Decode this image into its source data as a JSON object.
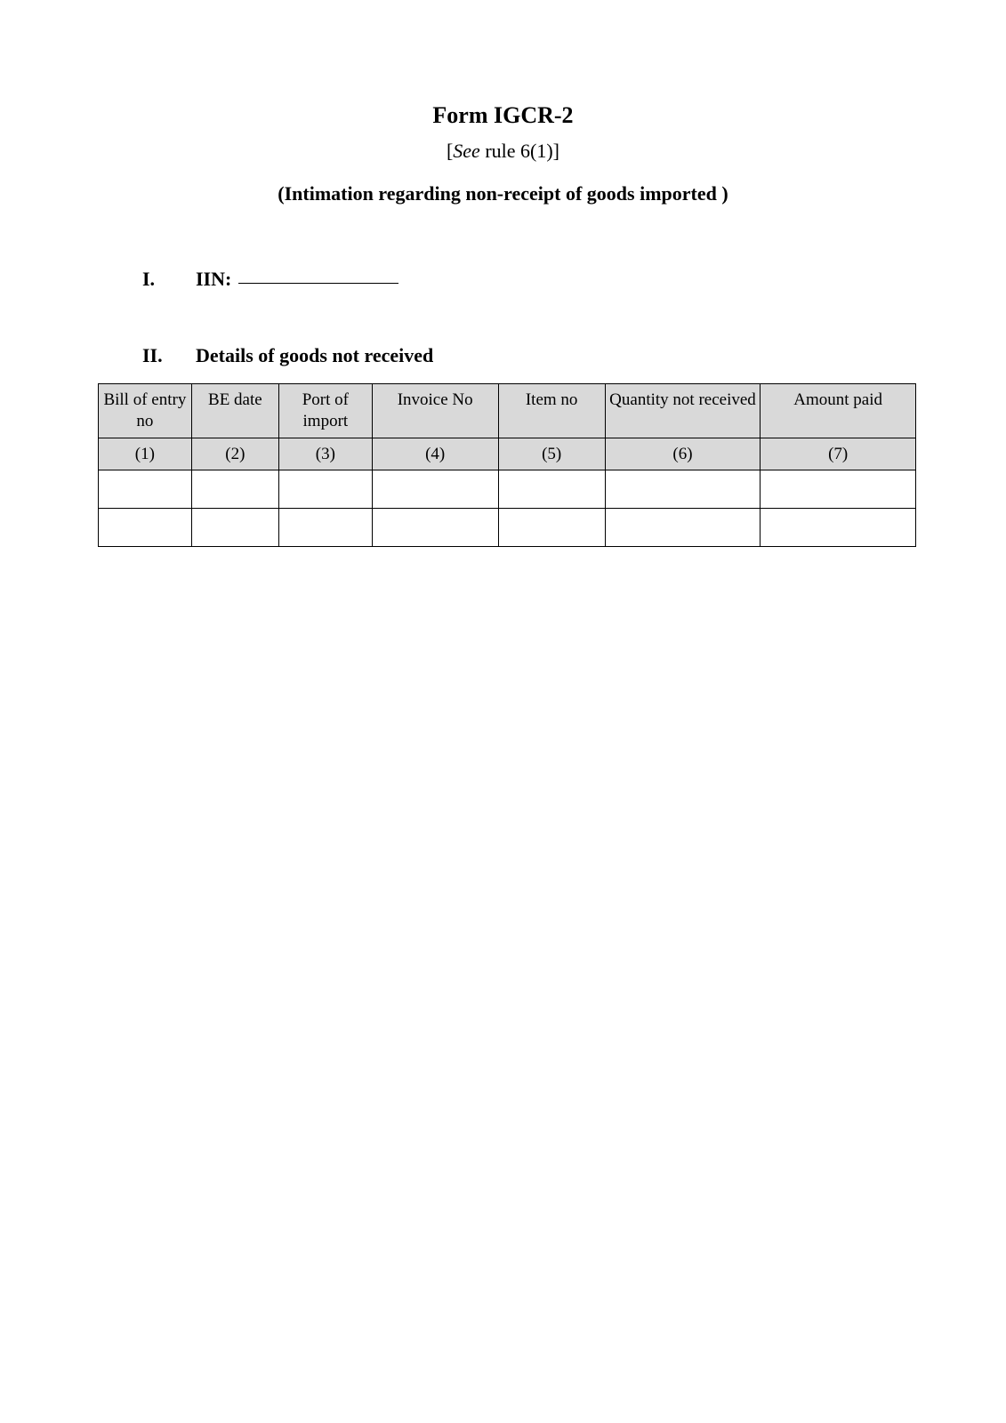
{
  "header": {
    "form_title": "Form IGCR-2",
    "see_prefix": "[",
    "see_italic": "See",
    "see_rest": " rule 6(1)]",
    "subtitle": "(Intimation regarding non-receipt of goods imported )"
  },
  "section_i": {
    "roman": "I.",
    "label": "IIN:",
    "value": ""
  },
  "section_ii": {
    "roman": "II.",
    "heading": "Details of goods not received"
  },
  "table": {
    "columns": [
      "Bill of entry no",
      "BE date",
      "Port of import",
      "Invoice No",
      "Item no",
      "Quantity not received",
      "Amount paid"
    ],
    "column_numbers": [
      "(1)",
      "(2)",
      "(3)",
      "(4)",
      "(5)",
      "(6)",
      "(7)"
    ],
    "rows": [
      [
        "",
        "",
        "",
        "",
        "",
        "",
        ""
      ],
      [
        "",
        "",
        "",
        "",
        "",
        "",
        ""
      ]
    ],
    "header_bg": "#d9d9d9",
    "border_color": "#000000"
  }
}
